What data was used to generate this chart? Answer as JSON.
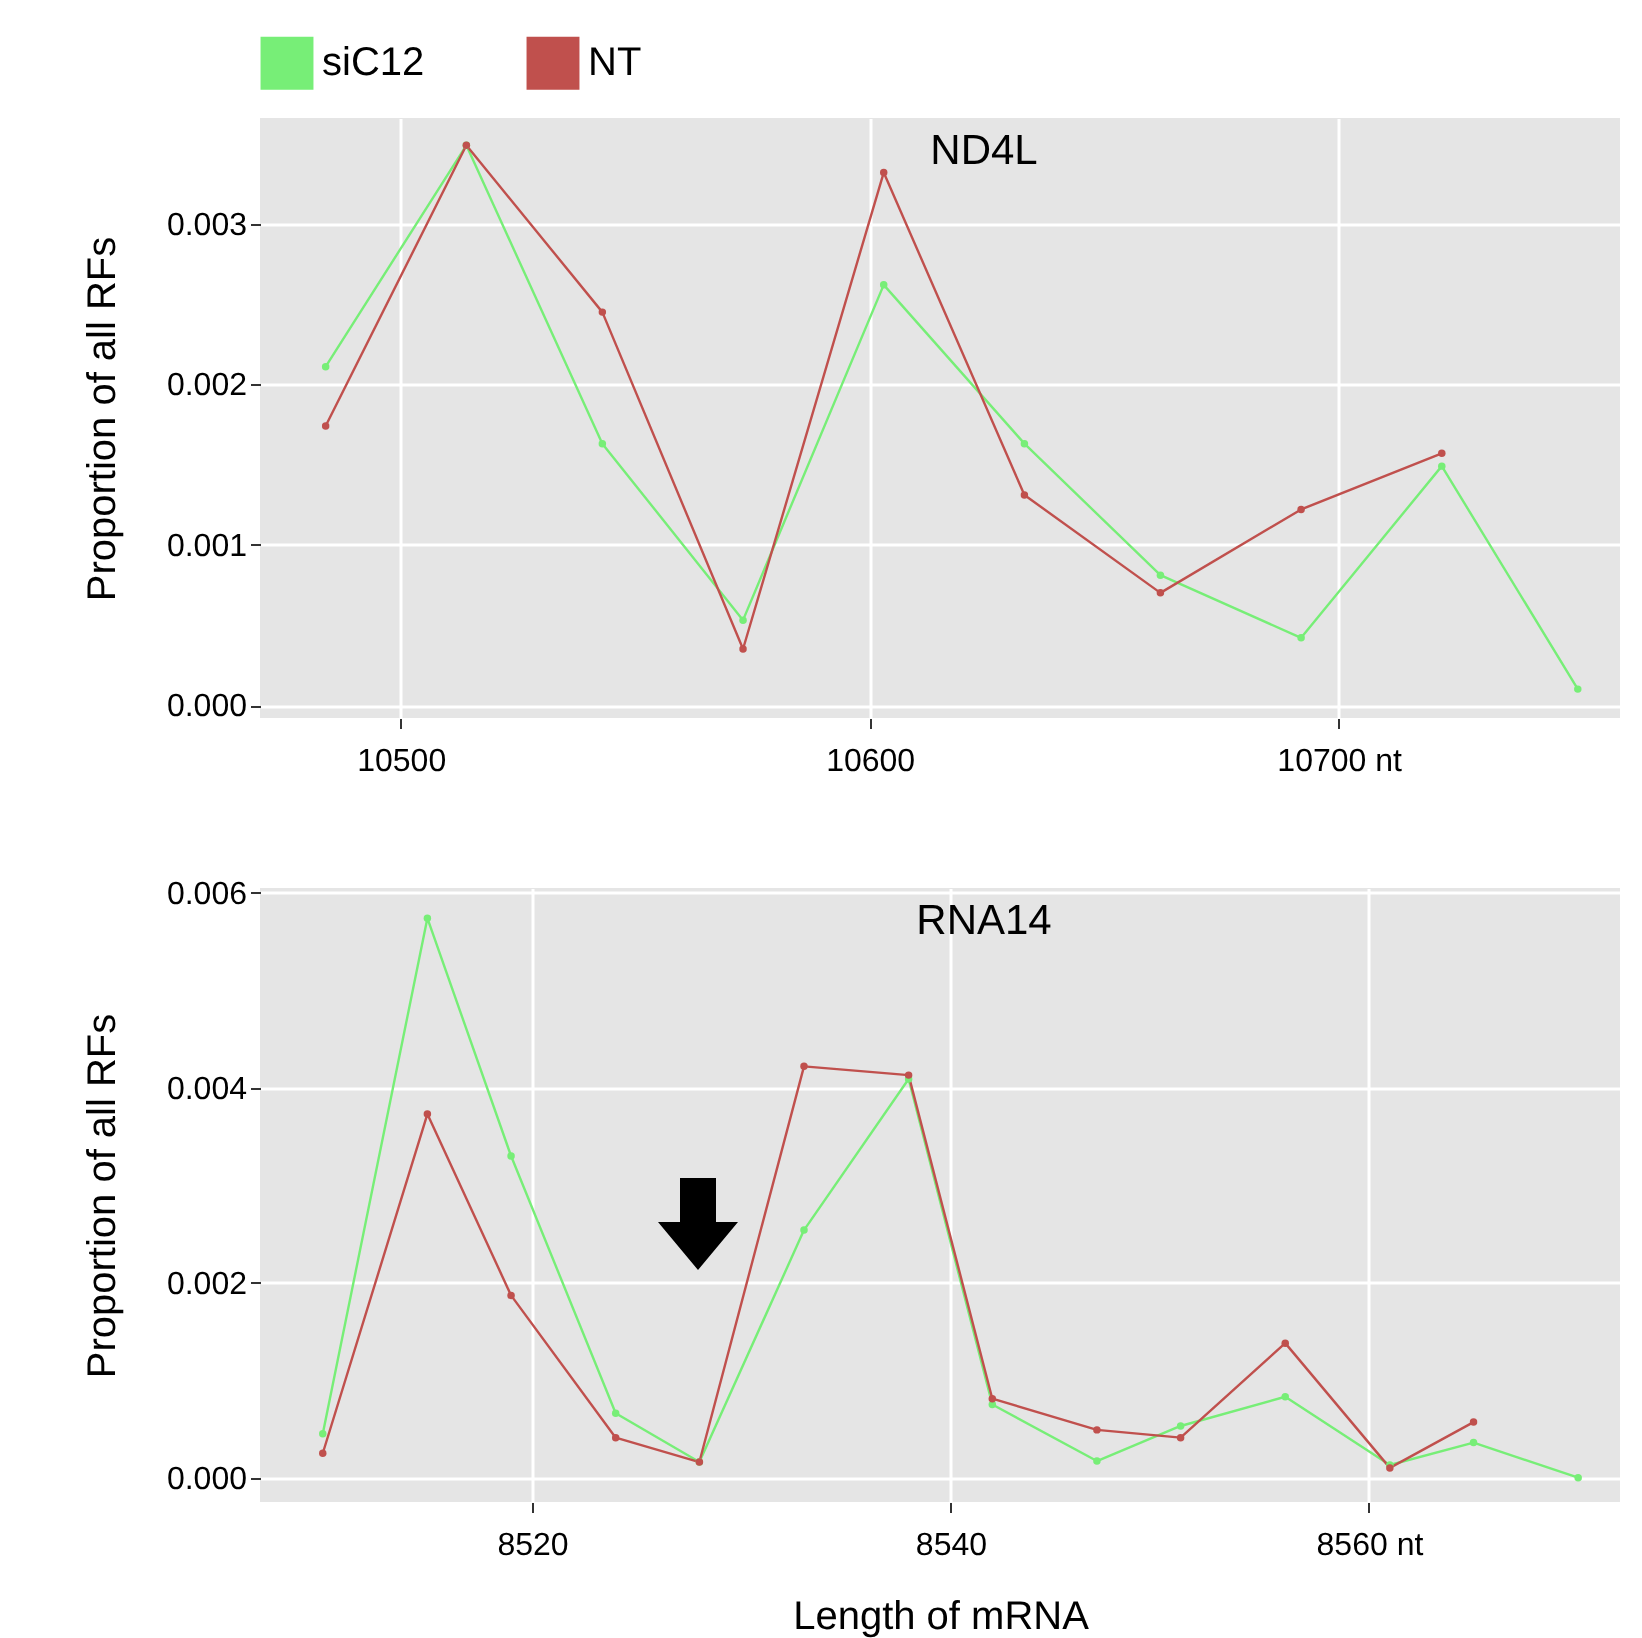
{
  "chart_data": [
    {
      "type": "line",
      "title": "ND4L",
      "ylabel": "Proportion of all RFs",
      "legend": "top",
      "grid": true,
      "marker": "circle",
      "line_style": "solid",
      "xlim": [
        10470,
        10760
      ],
      "xticks": [
        10500,
        10600,
        {
          "value": 10700,
          "label": "10700 nt"
        }
      ],
      "ylim": [
        -8e-05,
        0.00366
      ],
      "yticks": [
        {
          "value": 0,
          "label": "0.000"
        },
        {
          "value": 0.001,
          "label": "0.001"
        },
        {
          "value": 0.002,
          "label": "0.002"
        },
        {
          "value": 0.003,
          "label": "0.003"
        }
      ],
      "series": [
        {
          "name": "siC12",
          "color": "#77ee77",
          "x": [
            10484,
            10514,
            10543,
            10573,
            10603,
            10633,
            10662,
            10692,
            10722,
            10751
          ],
          "values": [
            0.00211,
            0.00349,
            0.00163,
            0.00053,
            0.00262,
            0.00163,
            0.00081,
            0.00042,
            0.00149,
            0.0001
          ]
        },
        {
          "name": "NT",
          "color": "#c0504d",
          "x": [
            10484,
            10514,
            10543,
            10573,
            10603,
            10633,
            10662,
            10692,
            10722
          ],
          "values": [
            0.00174,
            0.00349,
            0.00245,
            0.00035,
            0.00332,
            0.00131,
            0.0007,
            0.00122,
            0.00157
          ]
        }
      ]
    },
    {
      "type": "line",
      "title": "RNA14",
      "xlabel": "Length of mRNA",
      "ylabel": "Proportion of all RFs",
      "grid": true,
      "marker": "circle",
      "line_style": "solid",
      "xlim": [
        8507,
        8572
      ],
      "xticks": [
        8520,
        8540,
        {
          "value": 8560,
          "label": "8560 nt"
        }
      ],
      "ylim": [
        -0.00025,
        0.00605
      ],
      "yticks": [
        {
          "value": 0,
          "label": "0.000"
        },
        {
          "value": 0.002,
          "label": "0.002"
        },
        {
          "value": 0.004,
          "label": "0.004"
        },
        {
          "value": 0.006,
          "label": "0.006"
        }
      ],
      "series": [
        {
          "color": "#77ee77",
          "x": [
            8510,
            8515,
            8519,
            8524,
            8528,
            8533,
            8538,
            8542,
            8547,
            8551,
            8556,
            8561,
            8565,
            8570
          ],
          "values": [
            0.00045,
            0.00574,
            0.0033,
            0.00066,
            0.00016,
            0.00254,
            0.00409,
            0.00075,
            0.00017,
            0.00053,
            0.00083,
            0.00013,
            0.00036,
            0
          ]
        },
        {
          "color": "#c0504d",
          "x": [
            8510,
            8515,
            8519,
            8524,
            8528,
            8533,
            8538,
            8542,
            8547,
            8551,
            8556,
            8561,
            8565
          ],
          "values": [
            0.00025,
            0.00373,
            0.00187,
            0.00041,
            0.00016,
            0.00422,
            0.00413,
            0.00081,
            0.00049,
            0.00041,
            0.00138,
            0.0001,
            0.00057
          ]
        }
      ]
    }
  ]
}
